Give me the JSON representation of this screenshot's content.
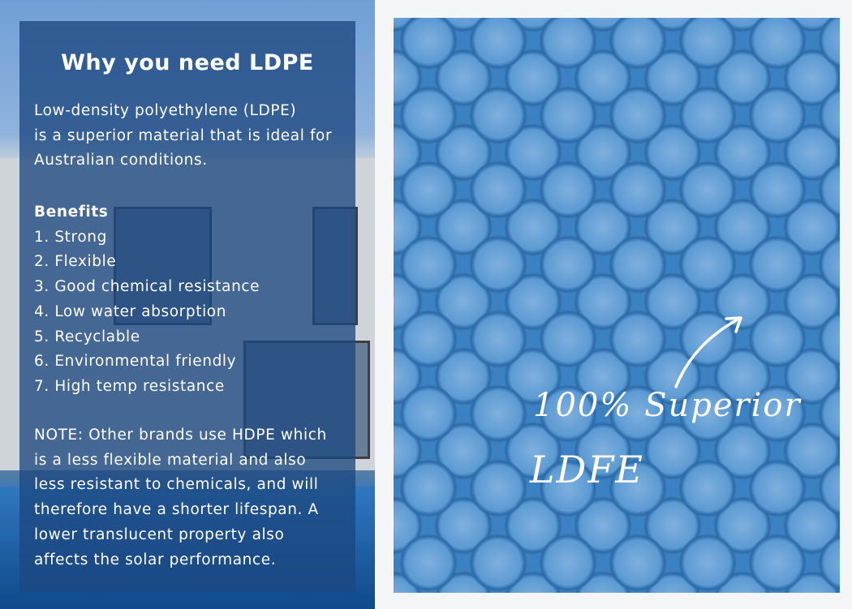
{
  "panel": {
    "title": "Why you need LDPE",
    "intro": [
      "Low-density polyethylene (LDPE)",
      "is a superior material that is ideal for",
      "Australian conditions."
    ],
    "benefits_heading": "Benefits",
    "benefits": [
      "1. Strong",
      "2. Flexible",
      "3. Good chemical resistance",
      "4. Low water absorption",
      "5. Recyclable",
      "6. Environmental friendly",
      "7. High temp resistance"
    ],
    "note": [
      "NOTE: Other brands use HDPE which",
      "is a less flexible material and also",
      "less resistant to chemicals, and will",
      "therefore have a shorter lifespan. A",
      "lower translucent property also",
      "affects the solar performance."
    ]
  },
  "callout": {
    "line1": "100% Superior",
    "line2": "LDFE",
    "icon": "curved-arrow-icon"
  },
  "colors": {
    "panel": "#1c4880",
    "bubble": "#3c82c2"
  }
}
